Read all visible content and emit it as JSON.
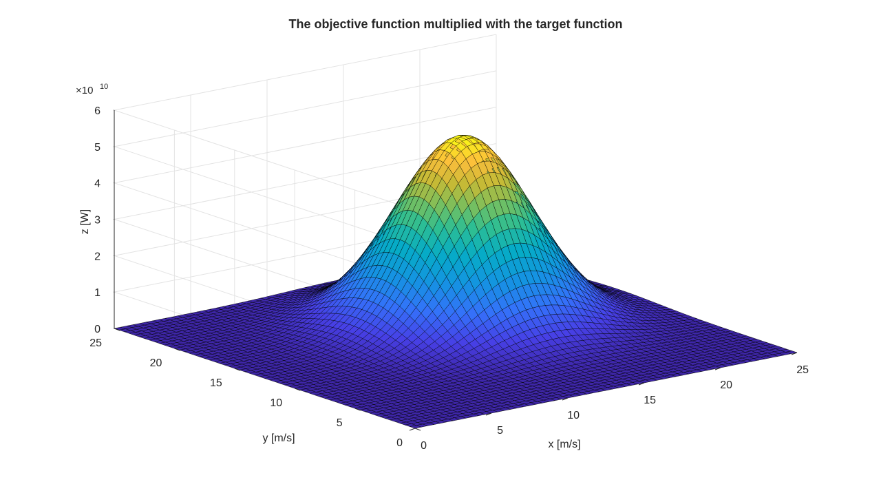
{
  "chart_data": {
    "type": "surface",
    "title": "The objective function multiplied with the target function",
    "xlabel": "x [m/s]",
    "ylabel": "y [m/s]",
    "zlabel": "z [W]",
    "z_exponent_base": "×10",
    "z_exponent_power": "10",
    "xlim": [
      0,
      25
    ],
    "ylim": [
      0,
      25
    ],
    "zlim": [
      0,
      6
    ],
    "xticks": [
      0,
      5,
      10,
      15,
      20,
      25
    ],
    "yticks": [
      0,
      5,
      10,
      15,
      20,
      25
    ],
    "zticks": [
      0,
      1,
      2,
      3,
      4,
      5,
      6
    ],
    "grid": true,
    "colormap": "parula",
    "edge_color": "#000000",
    "peak": {
      "x": 15,
      "y": 15,
      "z": 5.15
    },
    "spread": {
      "sigma_x": 3.6,
      "sigma_y": 3.6
    },
    "grid_points": 60
  }
}
